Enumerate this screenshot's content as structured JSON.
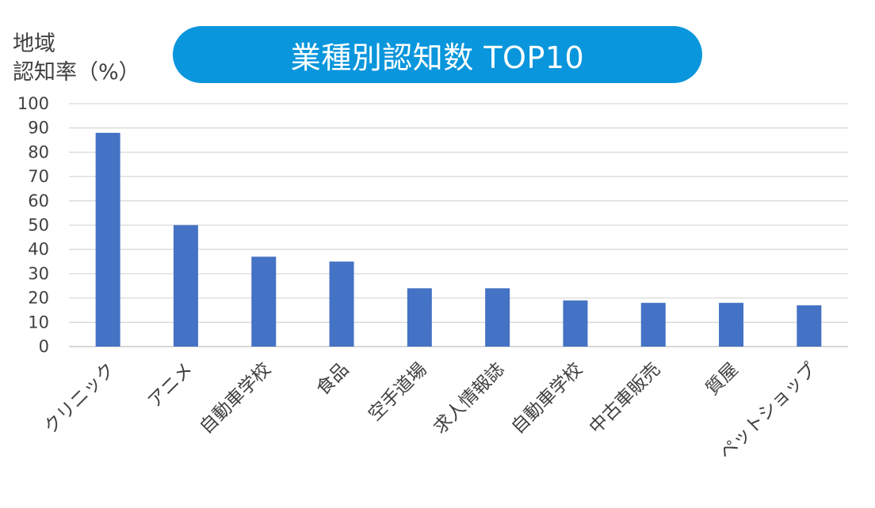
{
  "title": "業種別認知数 TOP10",
  "ylabel_lines": [
    "地域",
    "認知率（%）"
  ],
  "chart_data": {
    "type": "bar",
    "title": "業種別認知数 TOP10",
    "ylabel": "地域認知率（%）",
    "xlabel": "",
    "ylim": [
      0,
      100
    ],
    "yticks": [
      0,
      10,
      20,
      30,
      40,
      50,
      60,
      70,
      80,
      90,
      100
    ],
    "grid": true,
    "categories": [
      "クリニック",
      "アニメ",
      "自動車学校",
      "食品",
      "空手道場",
      "求人情報誌",
      "自動車学校",
      "中古車販売",
      "質屋",
      "ペットショップ"
    ],
    "values": [
      88,
      50,
      37,
      35,
      24,
      24,
      19,
      18,
      18,
      17
    ],
    "bar_color": "#4472c4",
    "title_bg_color": "#0a96dc"
  }
}
